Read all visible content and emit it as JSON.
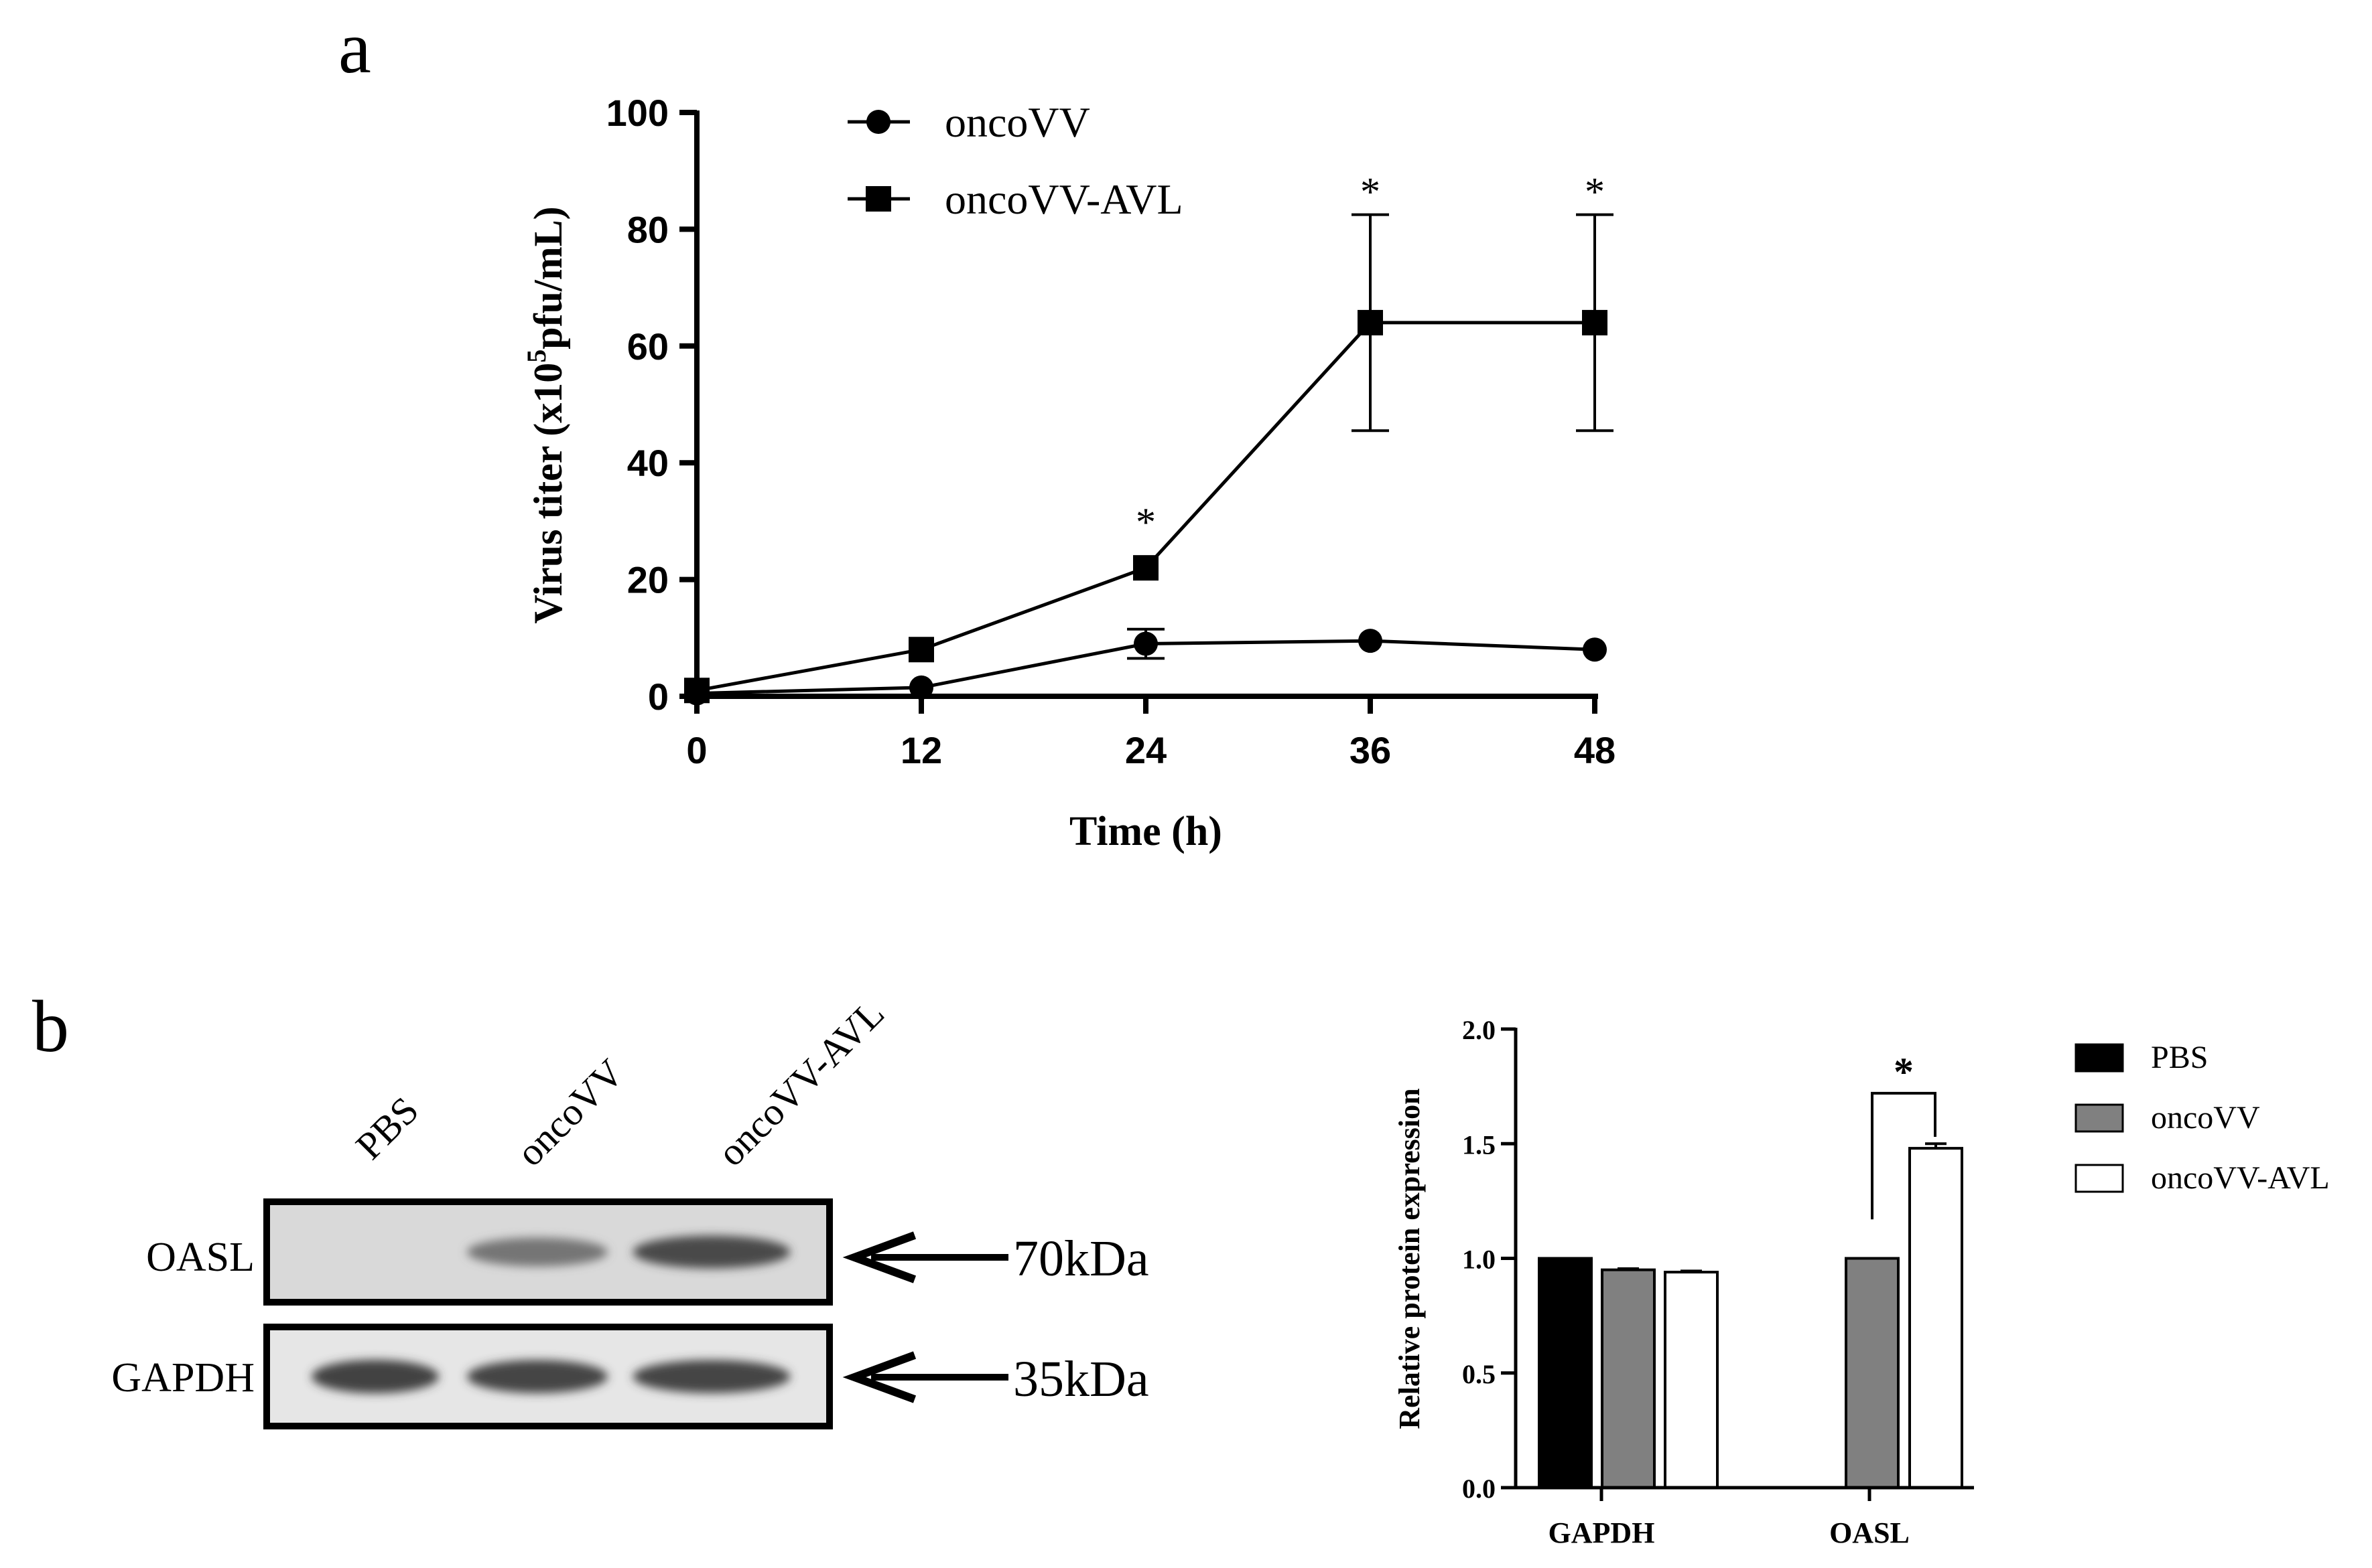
{
  "panel_labels": [
    "a",
    "b"
  ],
  "chart_data": [
    {
      "type": "line",
      "xlabel": "Time (h)",
      "ylabel_parts": [
        "Virus titer (x10",
        "5",
        "pfu/mL)"
      ],
      "x": [
        0,
        12,
        24,
        36,
        48
      ],
      "x_ticks": [
        "0",
        "12",
        "24",
        "36",
        "48"
      ],
      "y_ticks": [
        "0",
        "20",
        "40",
        "60",
        "80",
        "100"
      ],
      "xlim": [
        0,
        48
      ],
      "ylim": [
        0,
        100
      ],
      "legend_position": "top-left",
      "series": [
        {
          "name": "oncoVV",
          "marker": "circle",
          "values": [
            0.5,
            1.5,
            9,
            9.5,
            8
          ],
          "errors": [
            0,
            0,
            2.5,
            0,
            0
          ]
        },
        {
          "name": "oncoVV-AVL",
          "marker": "square",
          "values": [
            1,
            8,
            22,
            64,
            64
          ],
          "errors": [
            0,
            0,
            0,
            18.5,
            18.5
          ]
        }
      ],
      "significance": [
        {
          "x": 24,
          "label": "*"
        },
        {
          "x": 36,
          "label": "*"
        },
        {
          "x": 48,
          "label": "*"
        }
      ]
    },
    {
      "type": "bar",
      "categories": [
        "GAPDH",
        "OASL"
      ],
      "ylabel": "Relative protein expression",
      "y_ticks": [
        "0.0",
        "0.5",
        "1.0",
        "1.5",
        "2.0"
      ],
      "ylim": [
        0,
        2.0
      ],
      "legend_position": "right",
      "series": [
        {
          "name": "PBS",
          "color": "#000000",
          "values": [
            1.0,
            null
          ],
          "errors": [
            0,
            0
          ]
        },
        {
          "name": "oncoVV",
          "color": "#808080",
          "values": [
            0.95,
            1.0
          ],
          "errors": [
            0.005,
            0
          ]
        },
        {
          "name": "oncoVV-AVL",
          "color": "#ffffff",
          "values": [
            0.94,
            1.48
          ],
          "errors": [
            0.005,
            0.02
          ]
        }
      ],
      "significance": {
        "category": "OASL",
        "label": "*"
      }
    }
  ],
  "western_blot": {
    "lanes": [
      "PBS",
      "oncoVV",
      "oncoVV-AVL"
    ],
    "rows": [
      {
        "protein": "OASL",
        "size": "70kDa",
        "intensities": [
          0,
          0.55,
          0.85
        ]
      },
      {
        "protein": "GAPDH",
        "size": "35kDa",
        "intensities": [
          0.9,
          0.88,
          0.88
        ]
      }
    ]
  }
}
